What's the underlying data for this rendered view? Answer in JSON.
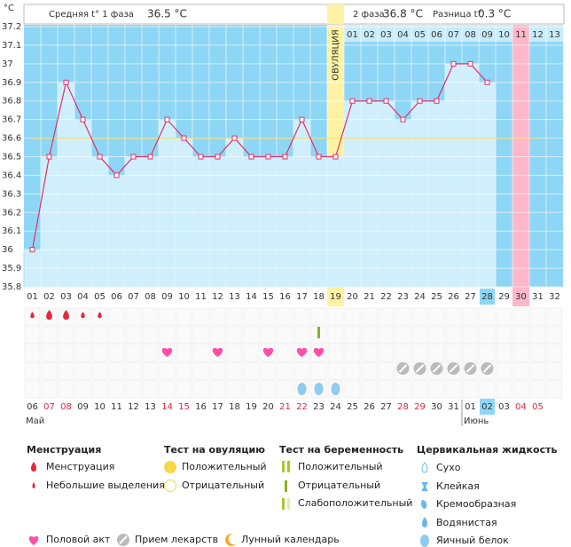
{
  "header": {
    "unit": "°C",
    "phase1_label": "Средняя t° 1 фаза",
    "phase1_value": "36.5 °C",
    "phase2_label": "2 фаза",
    "phase2_value": "36.8 °C",
    "diff_label": "Разница t°",
    "diff_value": "0.3 °C"
  },
  "chart_data": {
    "type": "bar",
    "ovulation_label": "ОВУЛЯЦИЯ",
    "categories": [
      "01",
      "02",
      "03",
      "04",
      "05",
      "06",
      "07",
      "08",
      "09",
      "10",
      "11",
      "12",
      "13",
      "14",
      "15",
      "16",
      "17",
      "18",
      "19",
      "20",
      "21",
      "22",
      "23",
      "24",
      "25",
      "26",
      "27",
      "28",
      "29",
      "30",
      "31",
      "32"
    ],
    "values": [
      36,
      36.5,
      36.9,
      36.7,
      36.5,
      36.4,
      36.5,
      36.5,
      36.7,
      36.6,
      36.5,
      36.5,
      36.6,
      36.5,
      36.5,
      36.5,
      36.7,
      36.5,
      36.5,
      36.8,
      36.8,
      36.8,
      36.7,
      36.8,
      36.8,
      37,
      37,
      36.9,
      null,
      null,
      null,
      null
    ],
    "color": "#cfeffc",
    "line_color": "#e0306a",
    "coverline": 36.6,
    "coverline_color": "#f2e07a",
    "ylim": [
      35.8,
      37.2
    ],
    "yticks": [
      35.8,
      35.9,
      36,
      36.1,
      36.2,
      36.3,
      36.4,
      36.5,
      36.6,
      36.7,
      36.8,
      36.9,
      37,
      37.1,
      37.2
    ],
    "grid": true,
    "next_cycle_days": [
      null,
      null,
      null,
      null,
      null,
      null,
      null,
      null,
      null,
      null,
      null,
      null,
      null,
      null,
      null,
      null,
      null,
      null,
      null,
      "01",
      "02",
      "03",
      "04",
      "05",
      "06",
      "07",
      "08",
      "09",
      "10",
      "11",
      "12",
      "13"
    ],
    "dates": [
      "06",
      "07",
      "08",
      "09",
      "10",
      "11",
      "12",
      "13",
      "14",
      "15",
      "16",
      "17",
      "18",
      "19",
      "20",
      "21",
      "22",
      "23",
      "24",
      "25",
      "26",
      "27",
      "28",
      "29",
      "30",
      "31",
      "01",
      "02",
      "03",
      "04",
      "05",
      null
    ],
    "weekend": [
      false,
      true,
      true,
      false,
      false,
      false,
      false,
      false,
      true,
      true,
      false,
      false,
      false,
      false,
      false,
      true,
      true,
      false,
      false,
      false,
      false,
      false,
      true,
      true,
      false,
      false,
      false,
      false,
      false,
      true,
      true,
      false
    ],
    "months": [
      "Май",
      null,
      null,
      null,
      null,
      null,
      null,
      null,
      null,
      null,
      null,
      null,
      null,
      null,
      null,
      null,
      null,
      null,
      null,
      null,
      null,
      null,
      null,
      null,
      null,
      null,
      "Июнь",
      null,
      null,
      null,
      null,
      null
    ]
  },
  "events": {
    "menstruation": [
      "Небольшие выделения",
      "Менструация",
      "Менструация",
      "Небольшие выделения",
      "Небольшие выделения",
      null,
      null,
      null,
      null,
      null,
      null,
      null,
      null,
      null,
      null,
      null,
      null,
      null,
      null,
      null,
      null,
      null,
      null,
      null,
      null,
      null,
      null,
      null,
      null,
      null,
      null,
      null
    ],
    "tests": [
      null,
      null,
      null,
      null,
      null,
      null,
      null,
      null,
      null,
      null,
      null,
      null,
      null,
      null,
      null,
      null,
      null,
      true,
      null,
      null,
      null,
      null,
      null,
      null,
      null,
      null,
      null,
      null,
      null,
      null,
      null,
      null
    ],
    "intercourse": [
      null,
      null,
      null,
      null,
      null,
      null,
      null,
      null,
      true,
      null,
      null,
      true,
      null,
      null,
      true,
      null,
      true,
      true,
      null,
      null,
      null,
      null,
      null,
      null,
      null,
      null,
      null,
      null,
      null,
      null,
      null,
      null
    ],
    "medication": [
      null,
      null,
      null,
      null,
      null,
      null,
      null,
      null,
      null,
      null,
      null,
      null,
      null,
      null,
      null,
      null,
      null,
      null,
      null,
      null,
      null,
      null,
      true,
      true,
      true,
      true,
      true,
      true,
      null,
      null,
      null,
      null
    ],
    "cervical_fluid": [
      null,
      null,
      null,
      null,
      null,
      null,
      null,
      null,
      null,
      null,
      null,
      null,
      null,
      null,
      null,
      null,
      "Яичный белок",
      "Яичный белок",
      "Яичный белок",
      null,
      null,
      null,
      null,
      null,
      null,
      null,
      null,
      null,
      null,
      null,
      null,
      null
    ]
  },
  "legend": {
    "menstruation": {
      "title": "Менструация",
      "items": [
        "Менструация",
        "Небольшие выделения"
      ]
    },
    "ovulation_test": {
      "title": "Тест на овуляцию",
      "items": [
        "Положительный",
        "Отрицательный"
      ]
    },
    "pregnancy_test": {
      "title": "Тест на беременность",
      "items": [
        "Положительный",
        "Отрицательный",
        "Слабоположительный"
      ]
    },
    "cervical": {
      "title": "Цервикальная жидкость",
      "items": [
        "Сухо",
        "Клейкая",
        "Кремообразная",
        "Водянистая",
        "Яичный белок"
      ]
    },
    "other": [
      "Половой акт",
      "Прием лекарств",
      "Лунный календарь"
    ]
  }
}
